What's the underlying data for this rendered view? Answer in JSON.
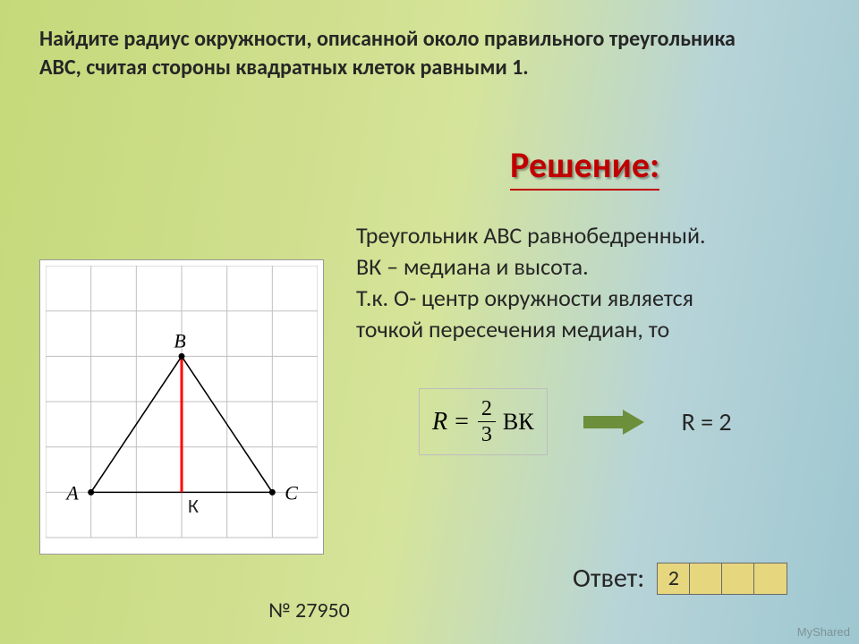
{
  "problem": {
    "line1": "Найдите радиус окружности, описанной около правильного треугольника",
    "line2": "ABC, считая стороны квадратных клеток равными 1."
  },
  "solution_heading": "Решение:",
  "explanation": {
    "l1": "Треугольник АВС равнобедренный.",
    "l2": "ВК – медиана и высота.",
    "l3": "Т.к. О- центр окружности является",
    "l4": "точкой пересечения медиан, то"
  },
  "formula": {
    "R": "R",
    "eq": "=",
    "num": "2",
    "den": "3",
    "bk": "ВК"
  },
  "result": "R = 2",
  "answer_label": "Ответ:",
  "answer_cells": {
    "c0": "2",
    "c1": "",
    "c2": "",
    "c3": ""
  },
  "task_number": "№ 27950",
  "watermark": "MyShared",
  "figure": {
    "grid_cells": 6,
    "cell": 51,
    "grid_color": "#bfbfbf",
    "triangle_stroke": "#000000",
    "median_color": "#ff0000",
    "label_A": "A",
    "label_B": "B",
    "label_C": "C",
    "label_K": "К",
    "font_family": "Times New Roman",
    "font_size": 22
  }
}
